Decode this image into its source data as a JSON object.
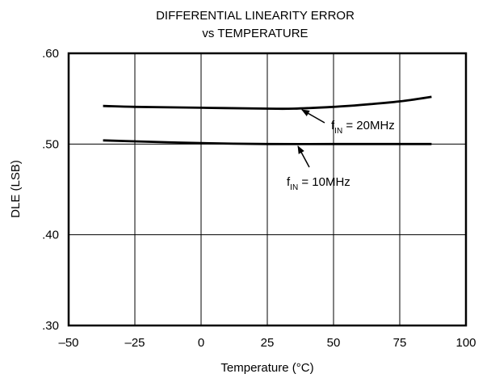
{
  "chart_data": {
    "type": "line",
    "title_line1": "DIFFERENTIAL LINEARITY ERROR",
    "title_line2": "vs TEMPERATURE",
    "xlabel": "Temperature (°C)",
    "ylabel": "DLE (LSB)",
    "xlim": [
      -50,
      100
    ],
    "ylim": [
      0.3,
      0.6
    ],
    "x_ticks": [
      -50,
      -25,
      0,
      25,
      50,
      75,
      100
    ],
    "x_tick_labels": [
      "–50",
      "–25",
      "0",
      "25",
      "50",
      "75",
      "100"
    ],
    "y_ticks": [
      0.3,
      0.4,
      0.5,
      0.6
    ],
    "y_tick_labels": [
      ".30",
      ".40",
      ".50",
      ".60"
    ],
    "grid": true,
    "series": [
      {
        "label_main": "f",
        "label_sub": "IN",
        "label_rest": " = 20MHz",
        "x": [
          -37,
          -25,
          0,
          25,
          35,
          50,
          60,
          75,
          87
        ],
        "y": [
          0.542,
          0.541,
          0.54,
          0.539,
          0.539,
          0.541,
          0.543,
          0.547,
          0.552
        ]
      },
      {
        "label_main": "f",
        "label_sub": "IN",
        "label_rest": " = 10MHz",
        "x": [
          -37,
          -25,
          0,
          25,
          50,
          75,
          87
        ],
        "y": [
          0.504,
          0.503,
          0.501,
          0.5,
          0.5,
          0.5,
          0.5
        ]
      }
    ]
  }
}
